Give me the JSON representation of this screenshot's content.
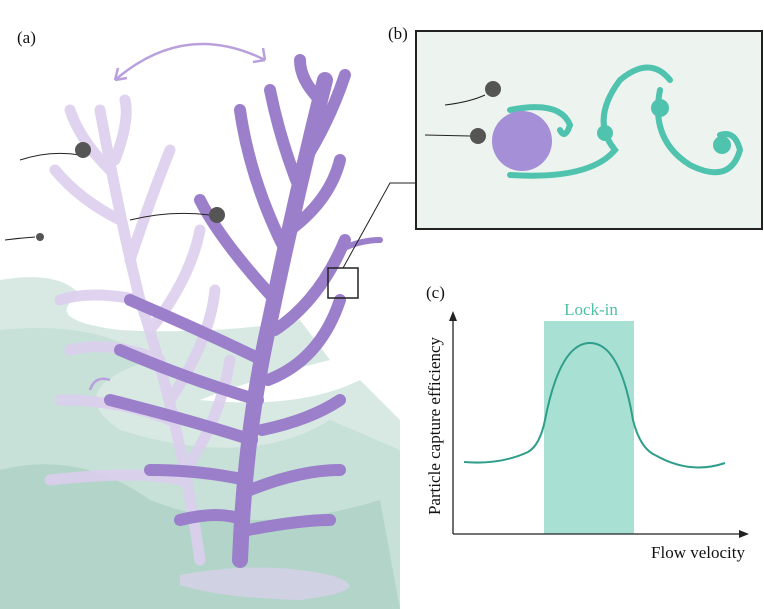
{
  "panels": {
    "a": {
      "label": "(a)"
    },
    "b": {
      "label": "(b)"
    },
    "c": {
      "label": "(c)",
      "band_label": "Lock-in",
      "xlabel": "Flow velocity",
      "ylabel": "Particle capture efficiency"
    }
  },
  "colors": {
    "coral": "#9b7fcb",
    "coral_ghost": "#d9cdea",
    "vortex": "#4fc3ad",
    "lockin_band": "#a8e0d3",
    "curve": "#2f9e8a",
    "panel_b_bg": "#edf4f0",
    "particle": "#555555",
    "seafloor": "#cfe3dc"
  }
}
